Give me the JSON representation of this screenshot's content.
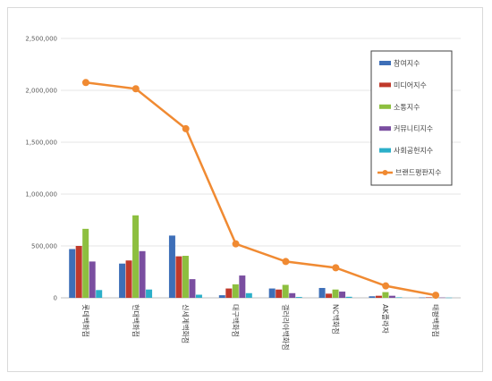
{
  "chart_data": {
    "type": "bar",
    "categories": [
      "롯데백화점",
      "현대백화점",
      "신세계백화점",
      "대구백화점",
      "갤러리아백화점",
      "NC백화점",
      "AK플라자",
      "태평백화점"
    ],
    "series": [
      {
        "name": "참여지수",
        "color": "#3E6FB8",
        "values": [
          470000,
          330000,
          600000,
          25000,
          90000,
          95000,
          15000,
          3000
        ]
      },
      {
        "name": "미디어지수",
        "color": "#C0392B",
        "values": [
          500000,
          360000,
          400000,
          90000,
          80000,
          40000,
          20000,
          5000
        ]
      },
      {
        "name": "소통지수",
        "color": "#8DBF3F",
        "values": [
          665000,
          795000,
          405000,
          130000,
          125000,
          80000,
          55000,
          5000
        ]
      },
      {
        "name": "커뮤니티지수",
        "color": "#7A4EA0",
        "values": [
          350000,
          450000,
          180000,
          215000,
          45000,
          60000,
          20000,
          3000
        ]
      },
      {
        "name": "사회공헌지수",
        "color": "#2BAFC9",
        "values": [
          75000,
          80000,
          30000,
          45000,
          8000,
          10000,
          5000,
          2000
        ]
      }
    ],
    "line_series": {
      "name": "브랜드평판지수",
      "color": "#F08A32",
      "values": [
        2075000,
        2015000,
        1630000,
        520000,
        350000,
        290000,
        115000,
        25000
      ]
    },
    "ylim": [
      0,
      2500000
    ],
    "yticks": [
      "0",
      "500,000",
      "1,000,000",
      "1,500,000",
      "2,000,000",
      "2,500,000"
    ],
    "ytick_values": [
      0,
      500000,
      1000000,
      1500000,
      2000000,
      2500000
    ],
    "grid": true,
    "legend_position": "top-right"
  }
}
